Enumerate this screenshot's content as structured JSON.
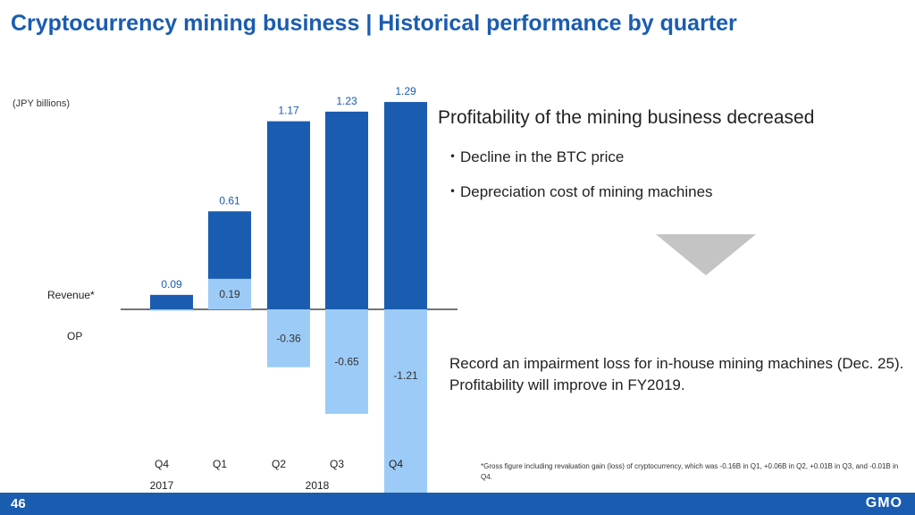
{
  "title": "Cryptocurrency mining business | Historical performance by quarter",
  "chart_data": {
    "type": "bar",
    "unit_label": "(JPY billions)",
    "categories": [
      "Q4",
      "Q1",
      "Q2",
      "Q3",
      "Q4"
    ],
    "year_labels": [
      "2017",
      "2018"
    ],
    "series": [
      {
        "name": "Revenue*",
        "values": [
          0.09,
          0.61,
          1.17,
          1.23,
          1.29
        ],
        "labels": [
          "0.09",
          "0.61",
          "1.17",
          "1.23",
          "1.29"
        ],
        "color": "#1a5cb0"
      },
      {
        "name": "OP",
        "values": [
          0.0,
          0.19,
          -0.36,
          -0.65,
          -1.21
        ],
        "labels": [
          "",
          "0.19",
          "-0.36",
          "-0.65",
          "-1.21"
        ],
        "color": "#9dcbf7"
      }
    ]
  },
  "right": {
    "headline": "Profitability of the mining business decreased",
    "bullets": [
      "・Decline in the BTC price",
      "・Depreciation cost of mining machines"
    ],
    "conclusion": "Record an impairment loss for in-house mining machines (Dec. 25). Profitability will improve in FY2019.",
    "footnote": "*Gross figure including revaluation gain (loss) of cryptocurrency, which was -0.16B in Q1, +0.06B in Q2, +0.01B in Q3, and -0.01B in Q4."
  },
  "footer": {
    "page": "46",
    "logo": "GMO"
  }
}
